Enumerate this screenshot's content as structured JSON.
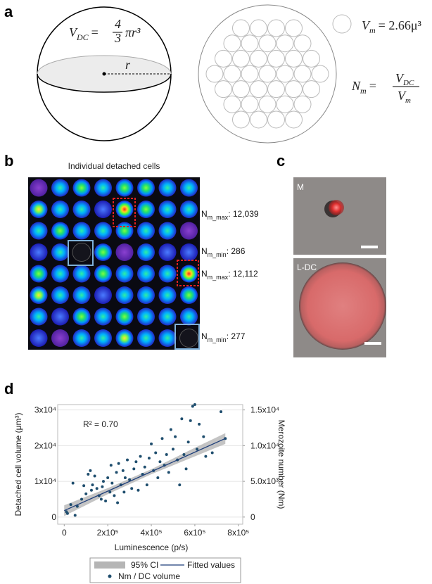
{
  "panel_a": {
    "label": "a",
    "sphere_eq": {
      "v": "V",
      "sub": "DC",
      "eq": "=",
      "num": "4",
      "den": "3",
      "rest": "πr³"
    },
    "radius": "r",
    "merozoite_eq": {
      "v": "V",
      "sub": "m",
      "rest": "= 2.66μ³"
    },
    "number_eq": {
      "n": "N",
      "sub": "m",
      "eq": "=",
      "num_v": "V",
      "num_sub": "DC",
      "den_v": "V",
      "den_sub": "m"
    }
  },
  "panel_b": {
    "label": "b",
    "title": "Individual detached cells",
    "annotations": [
      {
        "n": "N",
        "sub": "m_max",
        "text": ": 12,039"
      },
      {
        "n": "N",
        "sub": "m_min",
        "text": ": 286"
      },
      {
        "n": "N",
        "sub": "m_max",
        "text": ": 12,112"
      },
      {
        "n": "N",
        "sub": "m_min",
        "text": ": 277"
      }
    ]
  },
  "panel_c": {
    "label": "c",
    "images": [
      "M",
      "L-DC"
    ]
  },
  "panel_d": {
    "label": "d"
  },
  "chart_data": {
    "type": "scatter",
    "x_label": "Luminescence (p/s)",
    "y_label": "Detached cell volume (μm³)",
    "y2_label": "Merozoite number (Nm)",
    "annotation": "R² = 0.70",
    "xlim": [
      -30000,
      820000
    ],
    "xticks": [
      0,
      {
        "value": 200000,
        "label": "2x10⁵"
      },
      {
        "value": 400000,
        "label": "4x10⁵"
      },
      {
        "value": 600000,
        "label": "6x10⁵"
      },
      {
        "value": 800000,
        "label": "8x10⁵"
      }
    ],
    "ylim": [
      -2000,
      31500
    ],
    "yticks": [
      0,
      {
        "value": 10000,
        "label": "1x10⁴"
      },
      {
        "value": 20000,
        "label": "2x10⁴"
      },
      {
        "value": 30000,
        "label": "3x10⁴"
      }
    ],
    "y2lim": [
      -1000,
      15750
    ],
    "y2ticks": [
      0,
      {
        "value": 5000,
        "label": "5.0x10³"
      },
      {
        "value": 10000,
        "label": "1.0x10⁴"
      },
      {
        "value": 15000,
        "label": "1.5x10⁴"
      }
    ],
    "grid": true,
    "legend": "bottom",
    "series": [
      {
        "name": "Nm / DC volume",
        "color": "#1f4e6e",
        "x": [
          10000,
          15000,
          30000,
          40000,
          50000,
          60000,
          80000,
          90000,
          100000,
          110000,
          120000,
          125000,
          130000,
          140000,
          150000,
          160000,
          170000,
          175000,
          180000,
          190000,
          200000,
          210000,
          215000,
          220000,
          230000,
          240000,
          245000,
          250000,
          260000,
          270000,
          275000,
          280000,
          290000,
          300000,
          310000,
          320000,
          330000,
          340000,
          350000,
          360000,
          370000,
          380000,
          390000,
          400000,
          410000,
          420000,
          430000,
          440000,
          450000,
          460000,
          470000,
          480000,
          490000,
          500000,
          510000,
          520000,
          530000,
          540000,
          550000,
          560000,
          570000,
          580000,
          590000,
          600000,
          610000,
          620000,
          640000,
          650000,
          680000,
          720000,
          740000
        ],
        "values": [
          1500,
          1000,
          3500,
          9500,
          500,
          3000,
          5000,
          8800,
          6500,
          12000,
          13000,
          7500,
          9000,
          11500,
          8000,
          6000,
          5000,
          8500,
          10000,
          4500,
          11000,
          7000,
          14500,
          9500,
          6000,
          12500,
          4000,
          15000,
          9000,
          13000,
          7000,
          11000,
          16000,
          10500,
          8000,
          13500,
          15500,
          7500,
          17000,
          12000,
          14000,
          9000,
          16500,
          20500,
          13000,
          18000,
          11000,
          15500,
          22000,
          14500,
          17500,
          12500,
          24500,
          19000,
          22500,
          16000,
          9000,
          27500,
          17500,
          13500,
          21000,
          27000,
          31000,
          31500,
          19000,
          26000,
          22500,
          17000,
          18000,
          29500,
          22000
        ]
      },
      {
        "name": "Fitted values",
        "color": "#1f3f7a",
        "x": [
          0,
          740000
        ],
        "values": [
          1800,
          22000
        ]
      }
    ],
    "ci": {
      "name": "95% CI",
      "color": "#b5b5b5",
      "x": [
        0,
        200000,
        400000,
        600000,
        740000
      ],
      "lower": [
        300,
        6400,
        12000,
        17000,
        20500
      ],
      "upper": [
        3300,
        8100,
        13400,
        19400,
        23500
      ]
    }
  }
}
